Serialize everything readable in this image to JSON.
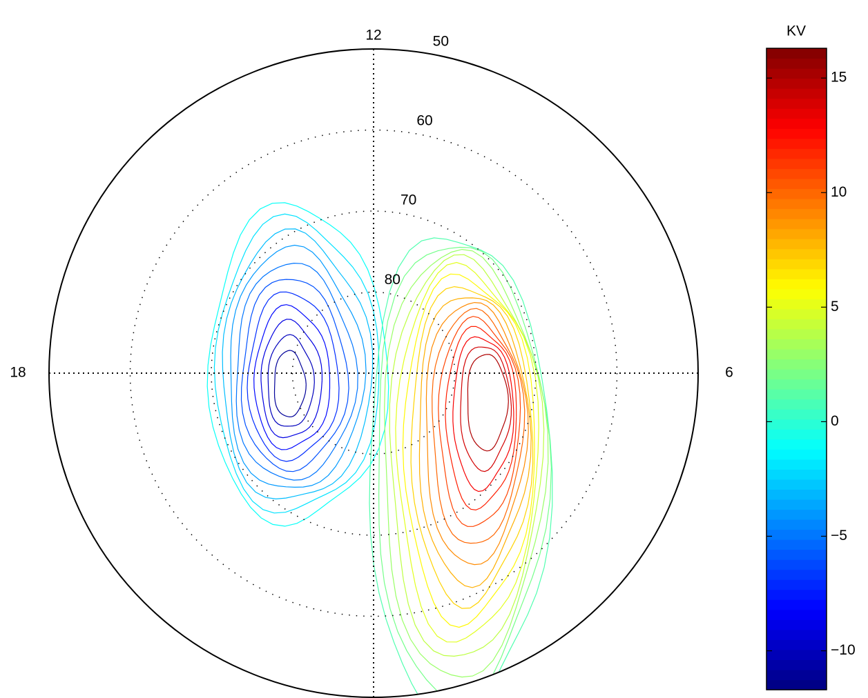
{
  "chart_data": {
    "type": "polar_contour",
    "colorbar_label": "KV",
    "colormap": "jet",
    "clim": [
      -11.7,
      16.3
    ],
    "cticks": [
      {
        "value": -10,
        "label": "−10"
      },
      {
        "value": -5,
        "label": "−5"
      },
      0,
      5,
      10,
      15
    ],
    "rlim": [
      90,
      50
    ],
    "rticks": [
      50,
      60,
      70,
      80
    ],
    "theta_ticks": [
      12,
      6,
      18
    ],
    "levels": [
      -11,
      -10,
      -9,
      -8,
      -7,
      -6,
      -5,
      -4,
      -3,
      -2,
      -1,
      1,
      2,
      3,
      4,
      5,
      6,
      7,
      8,
      9,
      10,
      11,
      12,
      13,
      14,
      15
    ]
  }
}
